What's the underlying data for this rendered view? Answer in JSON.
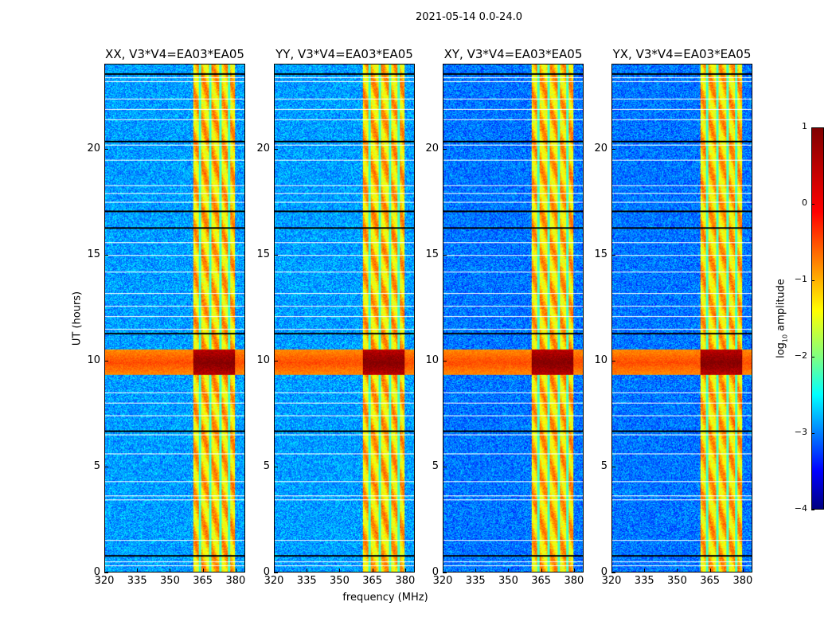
{
  "chart_data": {
    "type": "heatmap",
    "title": "2021-05-14 0.0-24.0",
    "xlabel": "frequency (MHz)",
    "ylabel": "UT (hours)",
    "xlim": [
      320,
      384.4
    ],
    "ylim": [
      0,
      24
    ],
    "xticks": [
      "320",
      "335",
      "350",
      "365",
      "380"
    ],
    "xtick_values": [
      320,
      335,
      350,
      365,
      380
    ],
    "yticks": [
      "0",
      "5",
      "10",
      "15",
      "20"
    ],
    "ytick_values": [
      0,
      5,
      10,
      15,
      20
    ],
    "panels": [
      {
        "title": "XX, V3*V4=EA03*EA05"
      },
      {
        "title": "YY, V3*V4=EA03*EA05"
      },
      {
        "title": "XY, V3*V4=EA03*EA05"
      },
      {
        "title": "YX, V3*V4=EA03*EA05"
      }
    ],
    "colorbar": {
      "label_prefix": "log",
      "label_sub": "10",
      "label_suffix": " amplitude",
      "colormap": "jet",
      "range": [
        -4,
        1
      ],
      "ticks": [
        "1",
        "0",
        "−1",
        "−2",
        "−3",
        "−4"
      ],
      "tick_values": [
        1,
        0,
        -1,
        -2,
        -3,
        -4
      ]
    },
    "features": {
      "background_log_amp": -2.7,
      "rfi_band_mhz": [
        360.7,
        380
      ],
      "rfi_band_log_amp": -0.6,
      "rfi_gaps_mhz": [
        363.8,
        368.5,
        373.2,
        377.2
      ],
      "broadband_interval_hours": [
        9.3,
        10.5
      ],
      "broadband_log_amp": 0.3,
      "flagged_black_hours": [
        0.8,
        6.7,
        11.3,
        16.3,
        17.1,
        20.4,
        23.6
      ],
      "flagged_white_hours": [
        0.3,
        0.5,
        1.5,
        3.4,
        3.6,
        4.3,
        5.6,
        6.5,
        7.4,
        8.0,
        8.5,
        11.5,
        12.1,
        12.6,
        13.2,
        14.2,
        15.0,
        15.6,
        17.5,
        17.9,
        18.3,
        19.5,
        20.2,
        21.4,
        21.9,
        22.4,
        23.2,
        23.4
      ]
    }
  }
}
